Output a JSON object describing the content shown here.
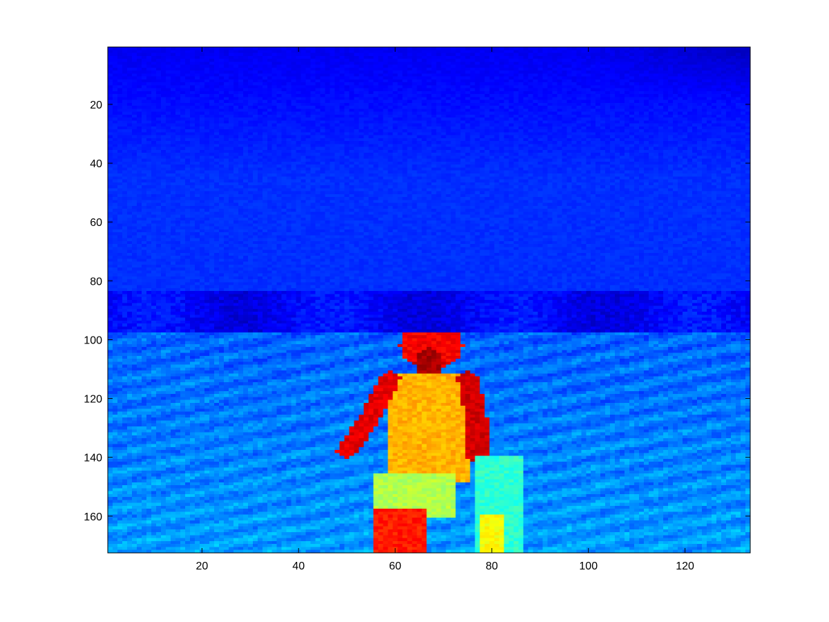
{
  "chart_data": {
    "type": "heatmap",
    "title": "",
    "xlabel": "",
    "ylabel": "",
    "colormap": "jet",
    "grid": false,
    "legend": "none",
    "image_size": {
      "columns": 133,
      "rows": 172
    },
    "xlim": [
      0.5,
      133.5
    ],
    "ylim": [
      0.5,
      172.5
    ],
    "y_reversed": true,
    "x_ticks": [
      20,
      40,
      60,
      80,
      100,
      120
    ],
    "y_ticks": [
      20,
      40,
      60,
      80,
      100,
      120,
      140,
      160
    ],
    "x_tick_labels": [
      "20",
      "40",
      "60",
      "80",
      "100",
      "120"
    ],
    "y_tick_labels": [
      "20",
      "40",
      "60",
      "80",
      "100",
      "120",
      "140",
      "160"
    ],
    "regions": [
      {
        "name": "sky",
        "rows": [
          1,
          83
        ],
        "level": 0.16
      },
      {
        "name": "horizon-band",
        "rows": [
          84,
          97
        ],
        "level": 0.13
      },
      {
        "name": "ground",
        "rows": [
          98,
          172
        ],
        "level": 0.24
      },
      {
        "name": "head",
        "center": [
          67.5,
          102
        ],
        "radius": [
          6.5,
          8
        ],
        "level": 0.88
      },
      {
        "name": "face",
        "center": [
          67,
          108
        ],
        "radius": [
          3,
          5
        ],
        "level": 0.96
      },
      {
        "name": "torso",
        "x": [
          59,
          75
        ],
        "y": [
          112,
          148
        ],
        "level": 0.7
      },
      {
        "name": "left-arm",
        "path": [
          [
            59,
            113
          ],
          [
            55,
            126
          ],
          [
            50,
            138
          ]
        ],
        "level": 0.9
      },
      {
        "name": "right-arm",
        "path": [
          [
            75,
            113
          ],
          [
            77,
            128
          ],
          [
            77,
            140
          ]
        ],
        "level": 0.92
      },
      {
        "name": "hips",
        "x": [
          56,
          72
        ],
        "y": [
          146,
          160
        ],
        "level": 0.55
      },
      {
        "name": "left-leg",
        "x": [
          56,
          61
        ],
        "y": [
          158,
          172
        ],
        "level": 0.85
      },
      {
        "name": "right-leg",
        "x": [
          62,
          66
        ],
        "y": [
          158,
          172
        ],
        "level": 0.85
      },
      {
        "name": "child-body",
        "x": [
          77,
          86
        ],
        "y": [
          140,
          172
        ],
        "level": 0.42
      },
      {
        "name": "child-legs",
        "x": [
          78,
          82
        ],
        "y": [
          160,
          172
        ],
        "level": 0.62
      }
    ]
  }
}
